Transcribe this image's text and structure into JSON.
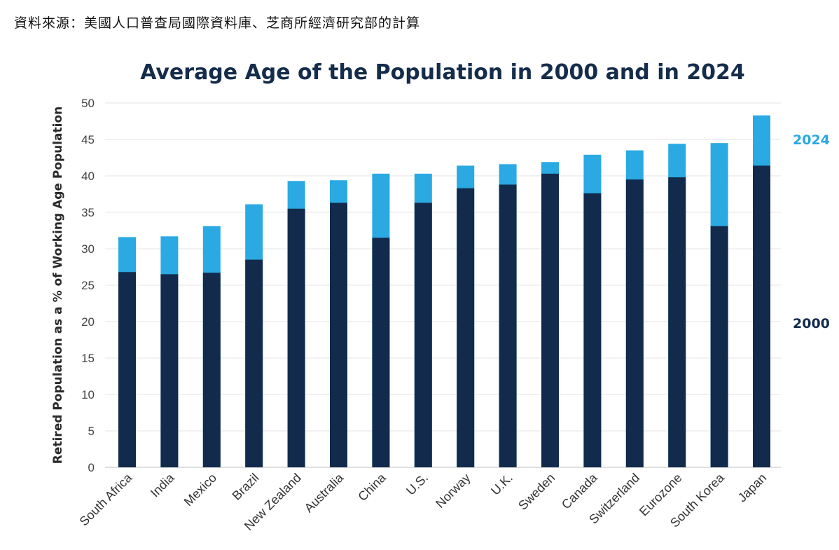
{
  "source_note": "資料來源：美國人口普查局國際資料庫、芝商所經濟研究部的計算",
  "chart_data": {
    "type": "bar",
    "stacked_overlay": true,
    "title": "Average Age of the Population in 2000 and in 2024",
    "ylabel": "Retired Population as a % of Working Age Population",
    "xlabel": "",
    "ylim": [
      0,
      50
    ],
    "yticks": [
      0,
      5,
      10,
      15,
      20,
      25,
      30,
      35,
      40,
      45,
      50
    ],
    "grid": true,
    "legend_placement": "right",
    "categories": [
      "South Africa",
      "India",
      "Mexico",
      "Brazil",
      "New Zealand",
      "Australia",
      "China",
      "U.S.",
      "Norway",
      "U.K.",
      "Sweden",
      "Canada",
      "Switzerland",
      "Eurozone",
      "South Korea",
      "Japan"
    ],
    "series": [
      {
        "name": "2000",
        "color": "#122b4c",
        "values": [
          26.8,
          26.5,
          26.7,
          28.5,
          35.5,
          36.3,
          31.5,
          36.3,
          38.3,
          38.8,
          40.3,
          37.6,
          39.5,
          39.8,
          33.1,
          41.4
        ]
      },
      {
        "name": "2024",
        "color": "#2aa9e3",
        "values": [
          31.6,
          31.7,
          33.1,
          36.1,
          39.3,
          39.4,
          40.3,
          40.3,
          41.4,
          41.6,
          41.9,
          42.9,
          43.5,
          44.4,
          44.5,
          48.3
        ]
      }
    ]
  }
}
